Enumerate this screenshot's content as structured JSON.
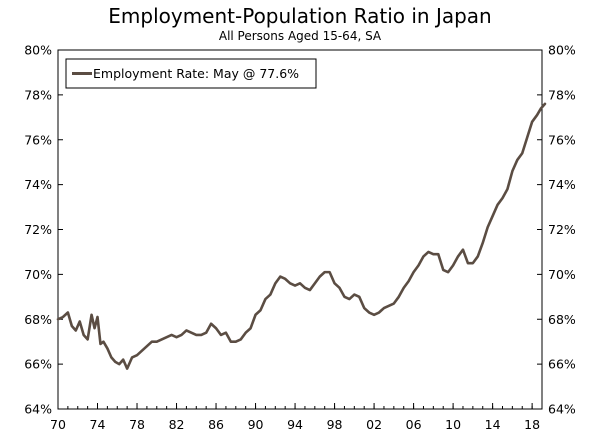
{
  "chart_data": {
    "type": "line",
    "title": "Employment-Population Ratio in Japan",
    "subtitle": "All Persons Aged 15-64, SA",
    "xlabel": "",
    "ylabel": "",
    "x_ticks": [
      "70",
      "74",
      "78",
      "82",
      "86",
      "90",
      "94",
      "98",
      "02",
      "06",
      "10",
      "14",
      "18"
    ],
    "x_tick_years": [
      1970,
      1974,
      1978,
      1982,
      1986,
      1990,
      1994,
      1998,
      2002,
      2006,
      2010,
      2014,
      2018
    ],
    "xlim": [
      1970,
      2019
    ],
    "y_ticks": [
      "64%",
      "66%",
      "68%",
      "70%",
      "72%",
      "74%",
      "76%",
      "78%",
      "80%"
    ],
    "y_tick_values": [
      64,
      66,
      68,
      70,
      72,
      74,
      76,
      78,
      80
    ],
    "ylim": [
      64,
      80
    ],
    "grid": false,
    "legend_position": "top-left",
    "series": [
      {
        "name": "Employment Rate: May @ 77.6%",
        "color": "#5b4d43",
        "x": [
          1970.0,
          1970.5,
          1971.0,
          1971.4,
          1971.8,
          1972.2,
          1972.6,
          1973.0,
          1973.4,
          1973.7,
          1974.0,
          1974.3,
          1974.6,
          1975.0,
          1975.4,
          1975.8,
          1976.2,
          1976.6,
          1977.0,
          1977.5,
          1978.0,
          1978.5,
          1979.0,
          1979.5,
          1980.0,
          1980.5,
          1981.0,
          1981.5,
          1982.0,
          1982.5,
          1983.0,
          1983.5,
          1984.0,
          1984.5,
          1985.0,
          1985.5,
          1986.0,
          1986.5,
          1987.0,
          1987.5,
          1988.0,
          1988.5,
          1989.0,
          1989.5,
          1990.0,
          1990.5,
          1991.0,
          1991.5,
          1992.0,
          1992.5,
          1993.0,
          1993.5,
          1994.0,
          1994.5,
          1995.0,
          1995.5,
          1996.0,
          1996.5,
          1997.0,
          1997.5,
          1998.0,
          1998.5,
          1999.0,
          1999.5,
          2000.0,
          2000.5,
          2001.0,
          2001.5,
          2002.0,
          2002.5,
          2003.0,
          2003.5,
          2004.0,
          2004.5,
          2005.0,
          2005.5,
          2006.0,
          2006.5,
          2007.0,
          2007.5,
          2008.0,
          2008.5,
          2009.0,
          2009.5,
          2010.0,
          2010.5,
          2011.0,
          2011.5,
          2012.0,
          2012.5,
          2013.0,
          2013.5,
          2014.0,
          2014.5,
          2015.0,
          2015.5,
          2016.0,
          2016.5,
          2017.0,
          2017.5,
          2018.0,
          2018.5,
          2018.9,
          2019.3
        ],
        "values": [
          68.0,
          68.1,
          68.3,
          67.7,
          67.5,
          67.9,
          67.3,
          67.1,
          68.2,
          67.6,
          68.1,
          66.9,
          67.0,
          66.7,
          66.3,
          66.1,
          66.0,
          66.2,
          65.8,
          66.3,
          66.4,
          66.6,
          66.8,
          67.0,
          67.0,
          67.1,
          67.2,
          67.3,
          67.2,
          67.3,
          67.5,
          67.4,
          67.3,
          67.3,
          67.4,
          67.8,
          67.6,
          67.3,
          67.4,
          67.0,
          67.0,
          67.1,
          67.4,
          67.6,
          68.2,
          68.4,
          68.9,
          69.1,
          69.6,
          69.9,
          69.8,
          69.6,
          69.5,
          69.6,
          69.4,
          69.3,
          69.6,
          69.9,
          70.1,
          70.1,
          69.6,
          69.4,
          69.0,
          68.9,
          69.1,
          69.0,
          68.5,
          68.3,
          68.2,
          68.3,
          68.5,
          68.6,
          68.7,
          69.0,
          69.4,
          69.7,
          70.1,
          70.4,
          70.8,
          71.0,
          70.9,
          70.9,
          70.2,
          70.1,
          70.4,
          70.8,
          71.1,
          70.5,
          70.5,
          70.8,
          71.4,
          72.1,
          72.6,
          73.1,
          73.4,
          73.8,
          74.6,
          75.1,
          75.4,
          76.1,
          76.8,
          77.1,
          77.4,
          77.6
        ]
      }
    ]
  }
}
